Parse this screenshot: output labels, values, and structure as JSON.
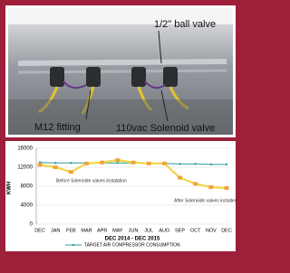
{
  "photo": {
    "labels": [
      "1/2\" ball valve",
      "M12 fitting",
      "110vac Solenoid valve"
    ]
  },
  "chart_data": {
    "type": "line",
    "categories": [
      "DEC",
      "JAN",
      "FEB",
      "MAR",
      "APR",
      "MAY",
      "JUN",
      "JUL",
      "AUG",
      "SEP",
      "OCT",
      "NOV",
      "DEC"
    ],
    "series": [
      {
        "name": "TARGET AIR COMPRESSOR CONSUMPTION",
        "color": "#2a9d9a",
        "values": [
          13000,
          12900,
          12900,
          12900,
          12900,
          12900,
          12900,
          12800,
          12800,
          12700,
          12700,
          12600,
          12600
        ]
      },
      {
        "color": "#f2d648",
        "values": [
          12500,
          12000,
          11000,
          12800,
          13000,
          13500,
          13000,
          12800,
          12800,
          9800,
          8500,
          7800,
          7600
        ]
      }
    ],
    "ylabel": "KWH",
    "xlabel": "DEC 2014 - DEC 2015",
    "ylim": [
      0,
      16000
    ],
    "yticks": [
      0,
      4000,
      8000,
      12000,
      16000
    ],
    "grid": true,
    "annotations": [
      "Before Solenoide valves instalation",
      "After Solenoide valves installed"
    ]
  }
}
